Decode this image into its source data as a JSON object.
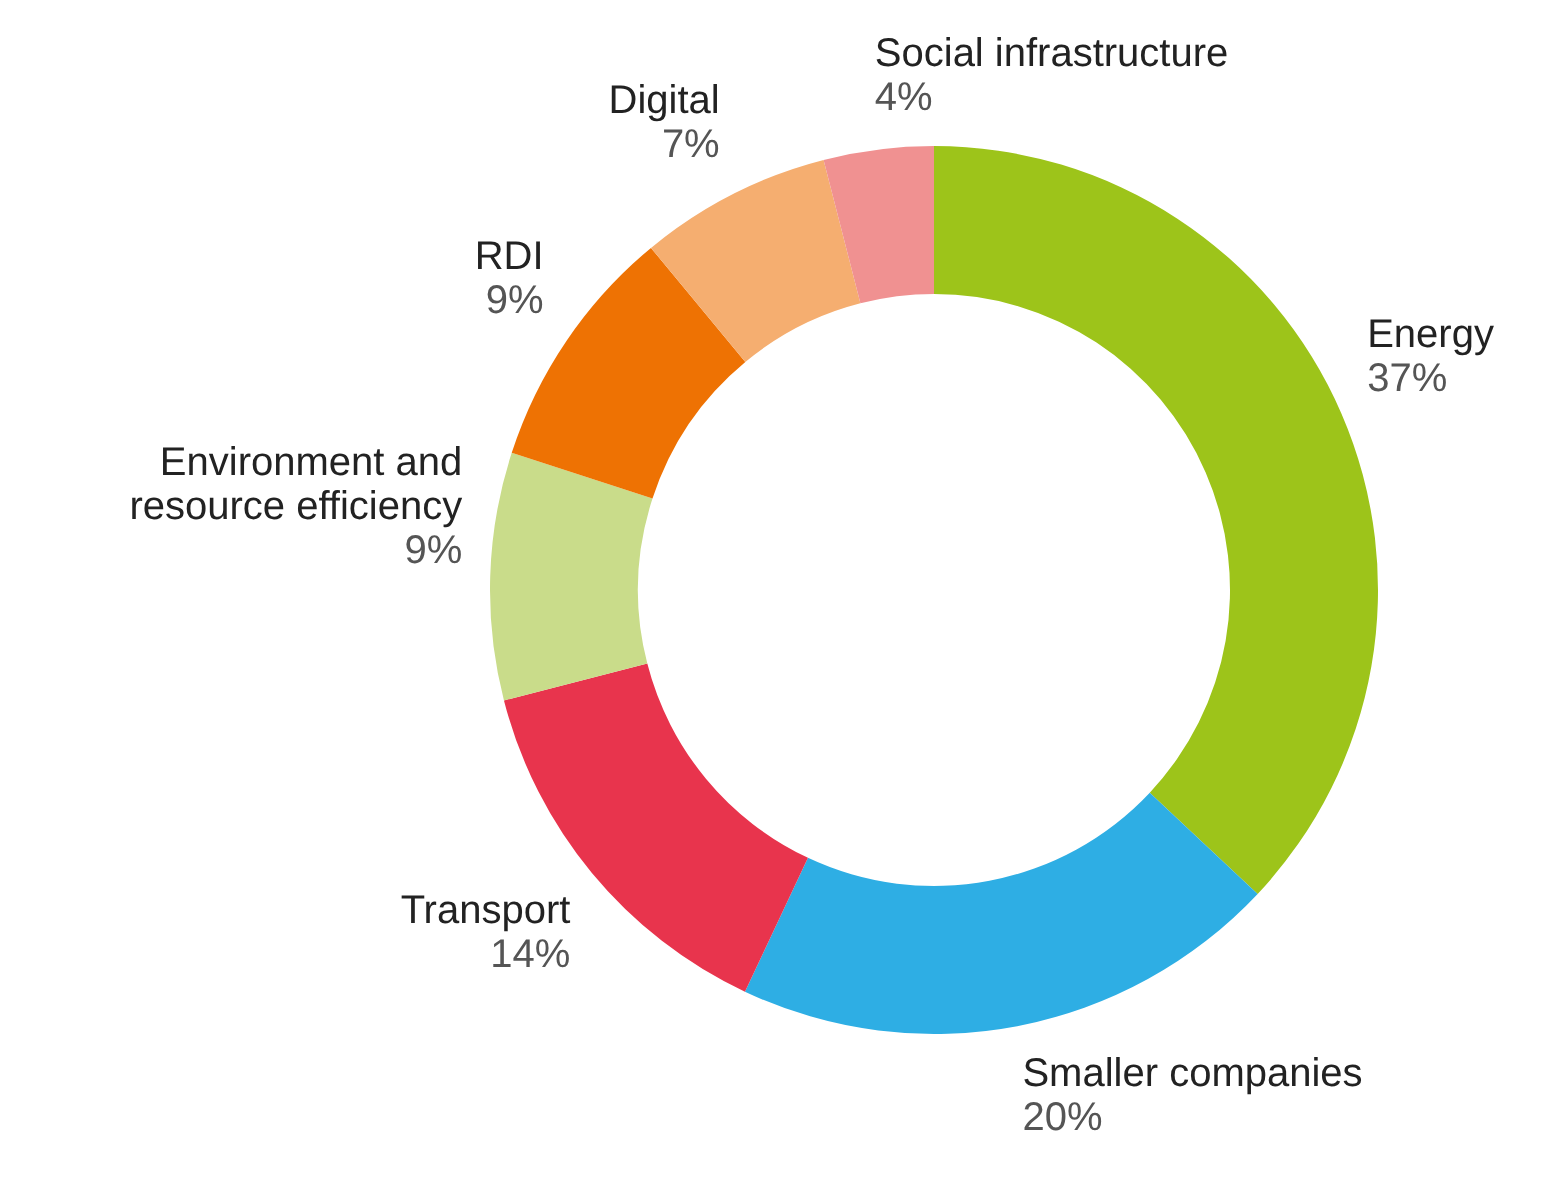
{
  "chart_data": {
    "type": "donut",
    "categories": [
      "Energy",
      "Smaller companies",
      "Transport",
      "Environment and resource efficiency",
      "RDI",
      "Digital",
      "Social infrastructure"
    ],
    "values": [
      37,
      20,
      14,
      9,
      9,
      7,
      4
    ],
    "value_labels": [
      "37%",
      "20%",
      "14%",
      "9%",
      "9%",
      "7%",
      "4%"
    ],
    "colors": [
      "#9dc41a",
      "#2eaee4",
      "#e8344d",
      "#c9dc8a",
      "#ee7203",
      "#f5ae70",
      "#f09191"
    ],
    "legend": false
  }
}
